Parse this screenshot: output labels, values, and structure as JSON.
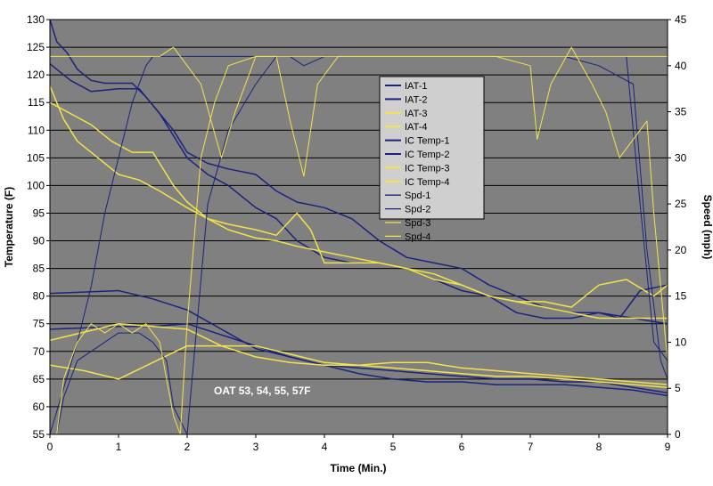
{
  "chart_data": {
    "type": "line",
    "title": "",
    "xlabel": "Time (Min.)",
    "ylabel_left": "Temperature (F)",
    "ylabel_right": "Speed (mph)",
    "xlim": [
      0,
      9
    ],
    "ylim_left": [
      55,
      130
    ],
    "ylim_right": [
      0,
      45
    ],
    "x_ticks": [
      0,
      1,
      2,
      3,
      4,
      5,
      6,
      7,
      8,
      9
    ],
    "y_left_ticks": [
      55,
      60,
      65,
      70,
      75,
      80,
      85,
      90,
      95,
      100,
      105,
      110,
      115,
      120,
      125,
      130
    ],
    "y_right_ticks": [
      0,
      5,
      10,
      15,
      20,
      25,
      30,
      35,
      40,
      45
    ],
    "grid": "horizontal",
    "legend_position": "top-center",
    "annotation": "OAT 53, 54, 55, 57F",
    "colors": {
      "plot_bg": "#808080",
      "navy": "#1a237e",
      "yellow": "#f2e34a",
      "grid": "#000000"
    },
    "series": [
      {
        "name": "IAT-1",
        "axis": "left",
        "color": "#1a237e",
        "width": 1.5,
        "x": [
          0,
          1,
          1.5,
          2,
          2.5,
          3,
          3.5,
          4,
          4.5,
          5,
          5.5,
          6,
          6.5,
          7,
          7.5,
          8,
          8.5,
          9
        ],
        "y": [
          74,
          74.5,
          74.5,
          75,
          73,
          71,
          69,
          67.5,
          66,
          65,
          64.5,
          64.5,
          64,
          64,
          64,
          63.5,
          63,
          62
        ]
      },
      {
        "name": "IAT-2",
        "axis": "left",
        "color": "#1a237e",
        "width": 1.5,
        "x": [
          0,
          1,
          1.5,
          2,
          2.5,
          3,
          3.5,
          4,
          4.5,
          5,
          5.5,
          6,
          6.5,
          7,
          7.5,
          8,
          8.5,
          9
        ],
        "y": [
          80.5,
          81,
          79.5,
          77.5,
          74,
          70.5,
          69,
          67.5,
          67,
          66.5,
          66,
          65.5,
          65,
          65,
          64.5,
          64.5,
          63.5,
          62.5
        ]
      },
      {
        "name": "IAT-3",
        "axis": "left",
        "color": "#f2e34a",
        "width": 1.5,
        "x": [
          0,
          0.5,
          1,
          1.5,
          2,
          2.5,
          3,
          3.5,
          4,
          4.5,
          5,
          5.5,
          6,
          6.5,
          7,
          7.5,
          8,
          8.5,
          9
        ],
        "y": [
          67.5,
          66.5,
          65,
          68,
          71,
          71,
          71,
          69.5,
          68,
          67.5,
          67,
          66.5,
          66,
          65.5,
          65.5,
          65,
          64.5,
          64,
          63.5
        ]
      },
      {
        "name": "IAT-4",
        "axis": "left",
        "color": "#f2e34a",
        "width": 1.5,
        "x": [
          0,
          0.5,
          1,
          1.5,
          2,
          2.5,
          3,
          3.5,
          4,
          4.5,
          5,
          5.5,
          6,
          6.5,
          7,
          7.5,
          8,
          8.5,
          9
        ],
        "y": [
          72,
          73.5,
          75,
          74.5,
          74,
          71,
          69,
          68,
          67.5,
          67.5,
          68,
          68,
          67,
          66.5,
          66,
          65.5,
          65,
          64.5,
          64
        ]
      },
      {
        "name": "IC Temp-1",
        "axis": "left",
        "color": "#1a237e",
        "width": 1.5,
        "x": [
          0,
          0.1,
          0.25,
          0.4,
          0.6,
          0.8,
          1,
          1.2,
          1.4,
          1.6,
          1.8,
          2,
          2.3,
          2.6,
          3,
          3.3,
          3.6,
          4,
          4.4,
          4.8,
          5.2,
          5.6,
          6,
          6.4,
          6.8,
          7.2,
          7.6,
          8,
          8.3,
          8.6,
          9
        ],
        "y": [
          130,
          126,
          124,
          121,
          119,
          118.5,
          118.5,
          118.5,
          116,
          113,
          110,
          106,
          104,
          103,
          102,
          99,
          97,
          96,
          94,
          90,
          87,
          86,
          85,
          82,
          80,
          78,
          77,
          77,
          76,
          81,
          82
        ]
      },
      {
        "name": "IC Temp-2",
        "axis": "left",
        "color": "#1a237e",
        "width": 1.5,
        "x": [
          0,
          0.3,
          0.6,
          1,
          1.3,
          1.6,
          2,
          2.3,
          2.6,
          3,
          3.3,
          3.6,
          4,
          4.4,
          4.8,
          5.2,
          5.6,
          6,
          6.4,
          6.8,
          7.2,
          7.6,
          8,
          8.5,
          9
        ],
        "y": [
          122,
          119,
          117,
          117.5,
          117.5,
          113,
          105,
          102,
          100,
          96,
          94,
          90,
          87,
          86,
          86,
          85,
          83,
          81,
          80,
          77,
          76,
          76,
          77,
          76,
          75
        ]
      },
      {
        "name": "IC Temp-3",
        "axis": "left",
        "color": "#f2e34a",
        "width": 1.5,
        "x": [
          0,
          0.2,
          0.4,
          0.6,
          0.8,
          1,
          1.3,
          1.6,
          2,
          2.3,
          2.6,
          3,
          3.3,
          3.6,
          4,
          4.4,
          4.8,
          5.2,
          5.6,
          6,
          6.4,
          6.8,
          7.2,
          7.6,
          8,
          8.4,
          8.8,
          9
        ],
        "y": [
          118,
          112,
          108,
          106,
          104,
          102,
          101,
          99,
          96,
          94,
          92,
          90.5,
          90,
          89,
          88,
          87,
          86,
          85,
          84,
          82,
          80,
          79,
          78,
          77,
          76,
          76,
          76,
          76
        ]
      },
      {
        "name": "IC Temp-4",
        "axis": "left",
        "color": "#f2e34a",
        "width": 1.5,
        "x": [
          0,
          0.3,
          0.6,
          0.9,
          1.2,
          1.5,
          1.8,
          2,
          2.3,
          2.6,
          3,
          3.3,
          3.6,
          3.8,
          4,
          4.4,
          4.8,
          5.2,
          5.6,
          6,
          6.4,
          6.8,
          7.2,
          7.6,
          8,
          8.4,
          8.8,
          9
        ],
        "y": [
          115,
          113,
          111,
          108,
          106,
          106,
          100,
          97,
          94,
          93,
          92,
          91,
          95,
          92,
          86,
          86,
          86,
          85,
          83,
          82,
          80,
          79,
          79,
          78,
          82,
          83,
          80,
          82
        ]
      },
      {
        "name": "Spd-1",
        "axis": "right",
        "color": "#1a237e",
        "width": 1,
        "x": [
          0,
          0.2,
          0.4,
          0.6,
          0.8,
          1,
          1.2,
          1.4,
          1.5,
          1.6,
          1.8,
          2,
          2.3,
          2.6,
          3,
          3.5,
          4,
          5,
          6,
          7,
          7.5,
          8,
          8.5,
          8.7,
          8.9,
          9
        ],
        "y": [
          0,
          5,
          10,
          16,
          24,
          30,
          36,
          40,
          41,
          41,
          41,
          41,
          41,
          41,
          41,
          41,
          41,
          41,
          41,
          41,
          41,
          40,
          38,
          20,
          8,
          6
        ]
      },
      {
        "name": "Spd-2",
        "axis": "right",
        "color": "#1a237e",
        "width": 1,
        "x": [
          0.1,
          0.2,
          0.4,
          0.6,
          0.8,
          1,
          1.1,
          1.2,
          1.3,
          1.5,
          1.7,
          1.8,
          2,
          2.3,
          2.6,
          3,
          3.3,
          3.5,
          3.7,
          4,
          4.5,
          5,
          6,
          7,
          7.5,
          8,
          8.4,
          8.6,
          8.8,
          9
        ],
        "y": [
          0,
          4,
          8,
          9,
          10,
          11,
          11,
          11,
          11,
          10,
          8,
          3,
          0,
          25,
          33,
          38,
          41,
          41,
          40,
          41,
          41,
          41,
          41,
          41,
          41,
          41,
          41,
          25,
          10,
          8
        ]
      },
      {
        "name": "Spd-3",
        "axis": "right",
        "color": "#f2e34a",
        "width": 1,
        "x": [
          0.1,
          0.2,
          0.4,
          0.6,
          0.8,
          1,
          1.2,
          1.4,
          1.6,
          1.7,
          1.8,
          1.9,
          2,
          2.2,
          2.4,
          2.6,
          3,
          3.5,
          4,
          5,
          6,
          7,
          8,
          8.5,
          8.8,
          9
        ],
        "y": [
          0,
          6,
          10,
          12,
          11,
          12,
          11,
          12,
          10,
          6,
          2,
          0,
          12,
          30,
          36,
          40,
          41,
          41,
          41,
          41,
          41,
          41,
          41,
          41,
          41,
          41
        ]
      },
      {
        "name": "Spd-4",
        "axis": "right",
        "color": "#f2e34a",
        "width": 1,
        "x": [
          0,
          0.5,
          1,
          1.3,
          1.6,
          1.8,
          2,
          2.2,
          2.5,
          2.7,
          3,
          3.3,
          3.5,
          3.7,
          3.9,
          4.2,
          4.5,
          5,
          6,
          6.5,
          7,
          7.1,
          7.3,
          7.6,
          7.9,
          8.1,
          8.3,
          8.5,
          8.7,
          8.8,
          9
        ],
        "y": [
          41,
          41,
          41,
          41,
          41,
          42,
          40,
          38,
          30,
          35,
          41,
          41,
          34,
          28,
          38,
          41,
          41,
          41,
          41,
          41,
          40,
          32,
          38,
          42,
          38,
          35,
          30,
          32,
          34,
          24,
          8
        ]
      }
    ]
  }
}
